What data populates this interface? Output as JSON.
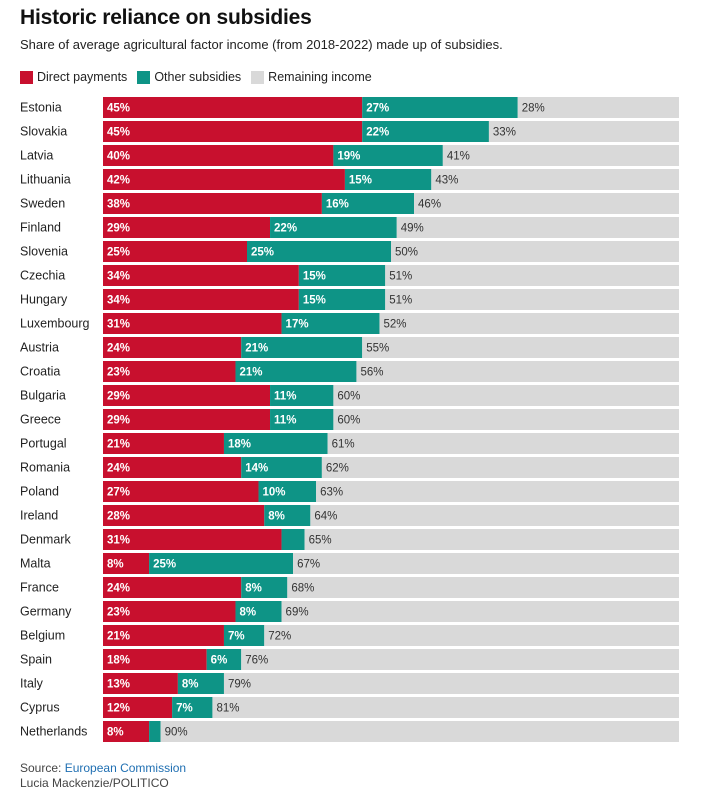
{
  "title": "Historic reliance on subsidies",
  "subtitle": "Share of average agricultural factor income (from 2018-2022) made up of subsidies.",
  "legend": [
    {
      "label": "Direct payments",
      "color": "#c8102e"
    },
    {
      "label": "Other subsidies",
      "color": "#0e9486"
    },
    {
      "label": "Remaining income",
      "color": "#d9d9d9"
    }
  ],
  "footer": {
    "source_prefix": "Source: ",
    "source_name": "European Commission",
    "credit": "Lucia Mackenzie/POLITICO"
  },
  "chart_data": {
    "type": "bar",
    "orientation": "horizontal",
    "stacked": true,
    "unit": "%",
    "xlim": [
      0,
      100
    ],
    "categories": [
      "Estonia",
      "Slovakia",
      "Latvia",
      "Lithuania",
      "Sweden",
      "Finland",
      "Slovenia",
      "Czechia",
      "Hungary",
      "Luxembourg",
      "Austria",
      "Croatia",
      "Bulgaria",
      "Greece",
      "Portugal",
      "Romania",
      "Poland",
      "Ireland",
      "Denmark",
      "Malta",
      "France",
      "Germany",
      "Belgium",
      "Spain",
      "Italy",
      "Cyprus",
      "Netherlands"
    ],
    "series": [
      {
        "name": "Direct payments",
        "color": "#c8102e",
        "values": [
          45,
          45,
          40,
          42,
          38,
          29,
          25,
          34,
          34,
          31,
          24,
          23,
          29,
          29,
          21,
          24,
          27,
          28,
          31,
          8,
          24,
          23,
          21,
          18,
          13,
          12,
          8
        ],
        "labels_shown": [
          true,
          true,
          true,
          true,
          true,
          true,
          true,
          true,
          true,
          true,
          true,
          true,
          true,
          true,
          true,
          true,
          true,
          true,
          true,
          true,
          true,
          true,
          true,
          true,
          true,
          true,
          true
        ]
      },
      {
        "name": "Other subsidies",
        "color": "#0e9486",
        "values": [
          27,
          22,
          19,
          15,
          16,
          22,
          25,
          15,
          15,
          17,
          21,
          21,
          11,
          11,
          18,
          14,
          10,
          8,
          4,
          25,
          8,
          8,
          7,
          6,
          8,
          7,
          2
        ],
        "labels_shown": [
          true,
          true,
          true,
          true,
          true,
          true,
          true,
          true,
          true,
          true,
          true,
          true,
          true,
          true,
          true,
          true,
          true,
          true,
          false,
          true,
          true,
          true,
          true,
          true,
          true,
          true,
          false
        ]
      },
      {
        "name": "Remaining income",
        "color": "#d9d9d9",
        "values": [
          28,
          33,
          41,
          43,
          46,
          49,
          50,
          51,
          51,
          52,
          55,
          56,
          60,
          60,
          61,
          62,
          63,
          64,
          65,
          67,
          68,
          69,
          72,
          76,
          79,
          81,
          90
        ],
        "labels_shown": [
          true,
          true,
          true,
          true,
          true,
          true,
          true,
          true,
          true,
          true,
          true,
          true,
          true,
          true,
          true,
          true,
          true,
          true,
          true,
          true,
          true,
          true,
          true,
          true,
          true,
          true,
          true
        ]
      }
    ]
  }
}
